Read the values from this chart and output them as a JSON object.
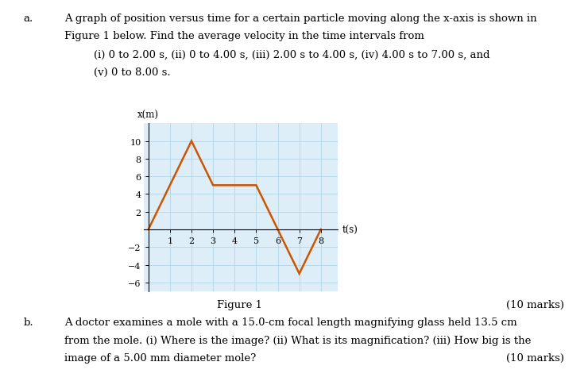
{
  "graph_x": [
    0,
    2,
    3,
    5,
    6,
    7,
    8
  ],
  "graph_y": [
    0,
    10,
    5,
    5,
    0,
    -5,
    0
  ],
  "line_color": "#CC5500",
  "line_width": 1.8,
  "xlabel": "t(s)",
  "ylabel": "x(m)",
  "xlim": [
    -0.2,
    8.8
  ],
  "ylim": [
    -7,
    12
  ],
  "xticks": [
    1,
    2,
    3,
    4,
    5,
    6,
    7,
    8
  ],
  "yticks": [
    -6,
    -4,
    -2,
    2,
    4,
    6,
    8,
    10
  ],
  "grid_color": "#b8d8e8",
  "background_color": "#deeef8",
  "fig_background": "#ffffff",
  "text_a_label": "a.",
  "text_a_line1": "A graph of position versus time for a certain particle moving along the x-axis is shown in",
  "text_a_line2": "Figure 1 below. Find the average velocity in the time intervals from",
  "text_a_line3": "(i) 0 to 2.00 s, (ii) 0 to 4.00 s, (iii) 2.00 s to 4.00 s, (iv) 4.00 s to 7.00 s, and",
  "text_a_line4": "(v) 0 to 8.00 s.",
  "figure_caption": "Figure 1",
  "marks_a": "(10 marks)",
  "text_b_label": "b.",
  "text_b_line1": "A doctor examines a mole with a 15.0-cm focal length magnifying glass held 13.5 cm",
  "text_b_line2": "from the mole. (i) Where is the image? (ii) What is its magnification? (iii) How big is the",
  "text_b_line3": "image of a 5.00 mm diameter mole?",
  "marks_b": "(10 marks)",
  "font_size_body": 9.5,
  "font_size_axis_label": 8.5,
  "font_size_tick": 8,
  "font_size_caption": 9.5
}
